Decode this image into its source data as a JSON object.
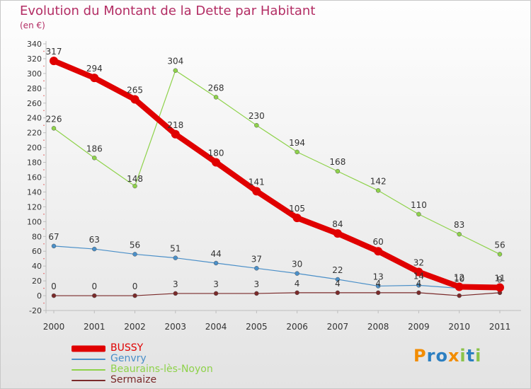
{
  "page": {
    "title": "Evolution du Montant de la Dette par Habitant",
    "subtitle": "(en €)",
    "logo": {
      "text": "Proxiti",
      "letters": [
        "P",
        "r",
        "o",
        "x",
        "i",
        "t",
        "i"
      ],
      "colors": [
        "#f28c00",
        "#2c7fc1",
        "#2c7fc1",
        "#f28c00",
        "#8bc34a",
        "#2c7fc1",
        "#8bc34a"
      ]
    }
  },
  "chart_data": {
    "type": "line",
    "title": "Evolution du Montant de la Dette par Habitant",
    "subtitle": "(en €)",
    "xlabel": "",
    "ylabel": "",
    "ylim": [
      -20,
      340
    ],
    "yticks": [
      -20,
      0,
      20,
      40,
      60,
      80,
      100,
      120,
      140,
      160,
      180,
      200,
      220,
      240,
      260,
      280,
      300,
      320,
      340
    ],
    "categories": [
      "2000",
      "2001",
      "2002",
      "2003",
      "2004",
      "2005",
      "2006",
      "2007",
      "2008",
      "2009",
      "2010",
      "2011"
    ],
    "grid": false,
    "legend": "bottom-left",
    "series": [
      {
        "name": "BUSSY",
        "color": "#e00000",
        "values": [
          317,
          294,
          265,
          218,
          180,
          141,
          105,
          84,
          60,
          32,
          12,
          11
        ],
        "labels": [
          "317",
          "294",
          "265",
          "218",
          "180",
          "141",
          "105",
          "84",
          "60",
          "32",
          "12",
          "11"
        ]
      },
      {
        "name": "Genvry",
        "color": "#4a8fc8",
        "values": [
          67,
          63,
          56,
          51,
          44,
          37,
          30,
          22,
          13,
          14,
          10,
          9
        ],
        "labels": [
          "67",
          "63",
          "56",
          "51",
          "44",
          "37",
          "30",
          "22",
          "13",
          "14",
          "10",
          "9"
        ]
      },
      {
        "name": "Beaurains-lès-Noyon",
        "color": "#8ed24a",
        "values": [
          226,
          186,
          148,
          304,
          268,
          230,
          194,
          168,
          142,
          110,
          83,
          56
        ],
        "labels": [
          "226",
          "186",
          "148",
          "304",
          "268",
          "230",
          "194",
          "168",
          "142",
          "110",
          "83",
          "56"
        ]
      },
      {
        "name": "Sermaize",
        "color": "#7a2a2a",
        "values": [
          0,
          0,
          0,
          3,
          3,
          3,
          4,
          4,
          4,
          4,
          0,
          4
        ],
        "labels": [
          "0",
          "0",
          "0",
          "3",
          "3",
          "3",
          "4",
          "4",
          "4",
          "4",
          "",
          ""
        ]
      }
    ]
  }
}
